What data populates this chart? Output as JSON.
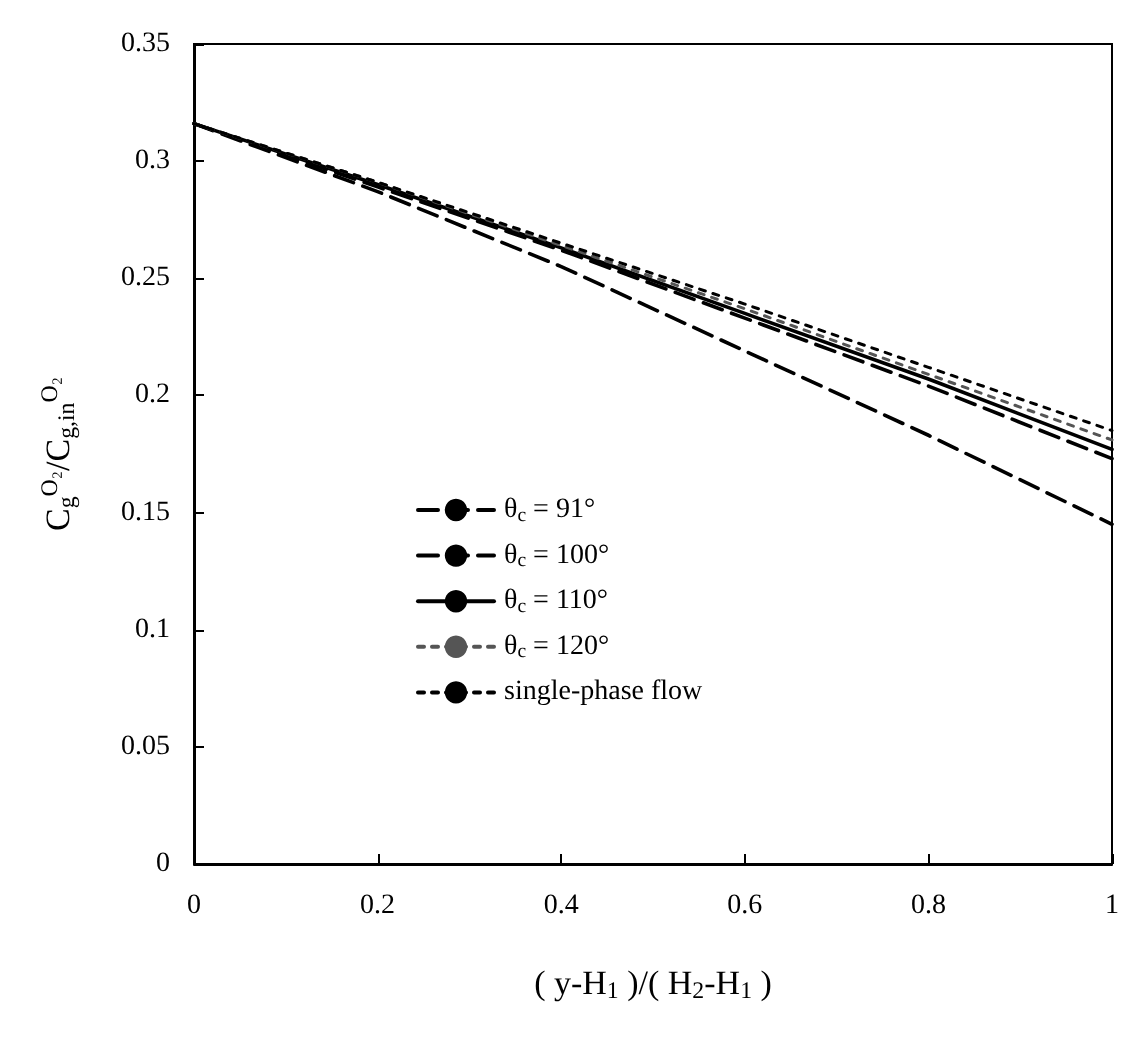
{
  "chart_data": {
    "type": "line",
    "xlabel": "( y-H$_{1}$ )/( H$_{2}$-H$_{1}$ )",
    "ylabel": "C$_{g}$$^{O₂}$/C$_{g,in}$$^{O₂}$",
    "x": [
      0,
      0.2,
      0.4,
      0.6,
      0.8,
      1
    ],
    "series": [
      {
        "name": "θ$_{c}$ = 91°",
        "color": "#000000",
        "line_style": "dashed",
        "values": [
          0.316,
          0.287,
          0.255,
          0.219,
          0.183,
          0.145
        ]
      },
      {
        "name": "θ$_{c}$ = 100°",
        "color": "#000000",
        "line_style": "dashed",
        "values": [
          0.316,
          0.289,
          0.262,
          0.233,
          0.204,
          0.173
        ]
      },
      {
        "name": "θ$_{c}$ = 110°",
        "color": "#000000",
        "line_style": "solid",
        "values": [
          0.316,
          0.29,
          0.263,
          0.235,
          0.207,
          0.177
        ]
      },
      {
        "name": "θ$_{c}$ = 120°",
        "color": "#555555",
        "line_style": "dotted",
        "values": [
          0.316,
          0.291,
          0.264,
          0.237,
          0.209,
          0.181
        ]
      },
      {
        "name": "single-phase flow",
        "color": "#000000",
        "line_style": "dotted",
        "values": [
          0.316,
          0.291,
          0.265,
          0.239,
          0.212,
          0.185
        ]
      }
    ],
    "xlim": [
      0,
      1
    ],
    "xticks": [
      0,
      0.2,
      0.4,
      0.6,
      0.8,
      1
    ],
    "ylim": [
      0,
      0.35
    ],
    "yticks": [
      0,
      0.05,
      0.1,
      0.15,
      0.2,
      0.25,
      0.3,
      0.35
    ],
    "grid": false,
    "legend": "left",
    "marker": "none"
  }
}
